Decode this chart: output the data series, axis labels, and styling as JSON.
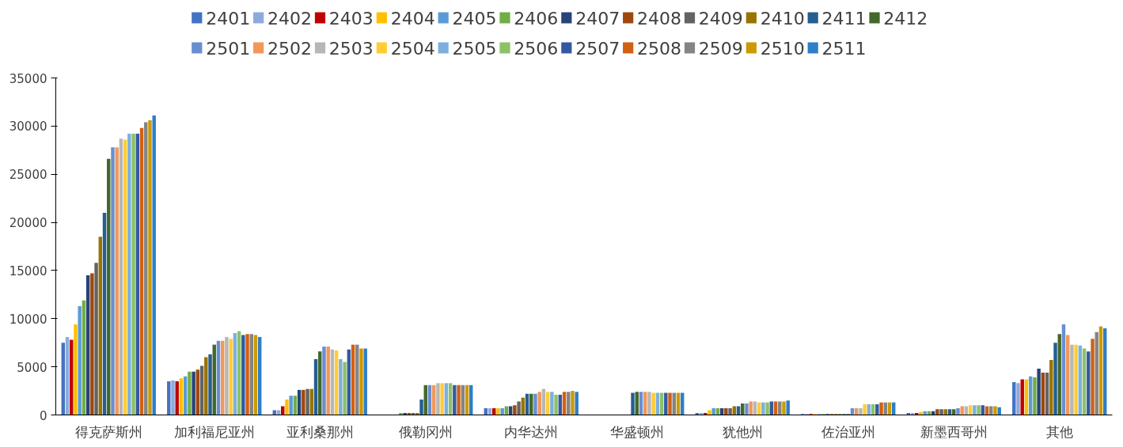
{
  "chart_data": {
    "type": "bar",
    "categories": [
      "得克萨斯州",
      "加利福尼亚州",
      "亚利桑那州",
      "俄勒冈州",
      "内华达州",
      "华盛顿州",
      "犹他州",
      "佐治亚州",
      "新墨西哥州",
      "其他"
    ],
    "ylim": [
      0,
      35000
    ],
    "yticks": [
      0,
      5000,
      10000,
      15000,
      20000,
      25000,
      30000,
      35000
    ],
    "grid": false,
    "legend": "top",
    "series": [
      {
        "name": "2401",
        "color": "#4472c4",
        "values": [
          7500,
          3500,
          500,
          0,
          700,
          0,
          200,
          100,
          200,
          3400
        ]
      },
      {
        "name": "2402",
        "color": "#8eaadb",
        "values": [
          8100,
          3600,
          500,
          0,
          700,
          0,
          200,
          100,
          200,
          3300
        ]
      },
      {
        "name": "2403",
        "color": "#c00000",
        "values": [
          7800,
          3500,
          900,
          0,
          700,
          0,
          200,
          100,
          200,
          3700
        ]
      },
      {
        "name": "2404",
        "color": "#ffc000",
        "values": [
          9400,
          3800,
          1600,
          0,
          700,
          0,
          500,
          100,
          300,
          3700
        ]
      },
      {
        "name": "2405",
        "color": "#5b9bd5",
        "values": [
          11300,
          4000,
          2000,
          0,
          700,
          0,
          700,
          100,
          400,
          4000
        ]
      },
      {
        "name": "2406",
        "color": "#70ad47",
        "values": [
          11900,
          4500,
          2000,
          200,
          900,
          0,
          700,
          100,
          400,
          3900
        ]
      },
      {
        "name": "2407",
        "color": "#264478",
        "values": [
          14500,
          4500,
          2600,
          200,
          900,
          0,
          700,
          100,
          400,
          4800
        ]
      },
      {
        "name": "2408",
        "color": "#9e480e",
        "values": [
          14700,
          4700,
          2600,
          200,
          1000,
          0,
          700,
          100,
          600,
          4400
        ]
      },
      {
        "name": "2409",
        "color": "#636363",
        "values": [
          15800,
          5100,
          2700,
          200,
          1400,
          0,
          700,
          100,
          600,
          4400
        ]
      },
      {
        "name": "2410",
        "color": "#997300",
        "values": [
          18500,
          6000,
          2700,
          200,
          1800,
          0,
          900,
          100,
          600,
          5700
        ]
      },
      {
        "name": "2411",
        "color": "#255e91",
        "values": [
          21000,
          6300,
          5800,
          1600,
          2200,
          2300,
          900,
          100,
          600,
          7500
        ]
      },
      {
        "name": "2412",
        "color": "#43682b",
        "values": [
          26600,
          7300,
          6600,
          3100,
          2200,
          2400,
          1200,
          100,
          600,
          8400
        ]
      },
      {
        "name": "2501",
        "color": "#698ed0",
        "values": [
          27800,
          7700,
          7100,
          3100,
          2200,
          2400,
          1200,
          700,
          700,
          9400
        ]
      },
      {
        "name": "2502",
        "color": "#f1975a",
        "values": [
          27800,
          7700,
          7100,
          3100,
          2400,
          2400,
          1400,
          700,
          900,
          8300
        ]
      },
      {
        "name": "2503",
        "color": "#b7b7b7",
        "values": [
          28700,
          8100,
          6800,
          3300,
          2700,
          2400,
          1400,
          700,
          900,
          7300
        ]
      },
      {
        "name": "2504",
        "color": "#ffcd33",
        "values": [
          28600,
          7900,
          6700,
          3300,
          2400,
          2300,
          1300,
          1100,
          1000,
          7300
        ]
      },
      {
        "name": "2505",
        "color": "#7cafdd",
        "values": [
          29200,
          8500,
          5800,
          3300,
          2400,
          2300,
          1300,
          1100,
          1000,
          7200
        ]
      },
      {
        "name": "2506",
        "color": "#8cc168",
        "values": [
          29200,
          8700,
          5500,
          3300,
          2100,
          2300,
          1300,
          1100,
          1000,
          6900
        ]
      },
      {
        "name": "2507",
        "color": "#335aa1",
        "values": [
          29200,
          8300,
          6800,
          3100,
          2100,
          2300,
          1400,
          1100,
          1000,
          6600
        ]
      },
      {
        "name": "2508",
        "color": "#d26012",
        "values": [
          29800,
          8400,
          7300,
          3100,
          2400,
          2300,
          1400,
          1300,
          900,
          7900
        ]
      },
      {
        "name": "2509",
        "color": "#848484",
        "values": [
          30400,
          8400,
          7300,
          3100,
          2400,
          2300,
          1400,
          1300,
          900,
          8600
        ]
      },
      {
        "name": "2510",
        "color": "#cc9a00",
        "values": [
          30600,
          8300,
          6900,
          3100,
          2500,
          2300,
          1400,
          1300,
          900,
          9200
        ]
      },
      {
        "name": "2511",
        "color": "#2e7ec8",
        "values": [
          31100,
          8100,
          6900,
          3100,
          2400,
          2300,
          1500,
          1300,
          800,
          9000
        ]
      }
    ]
  }
}
